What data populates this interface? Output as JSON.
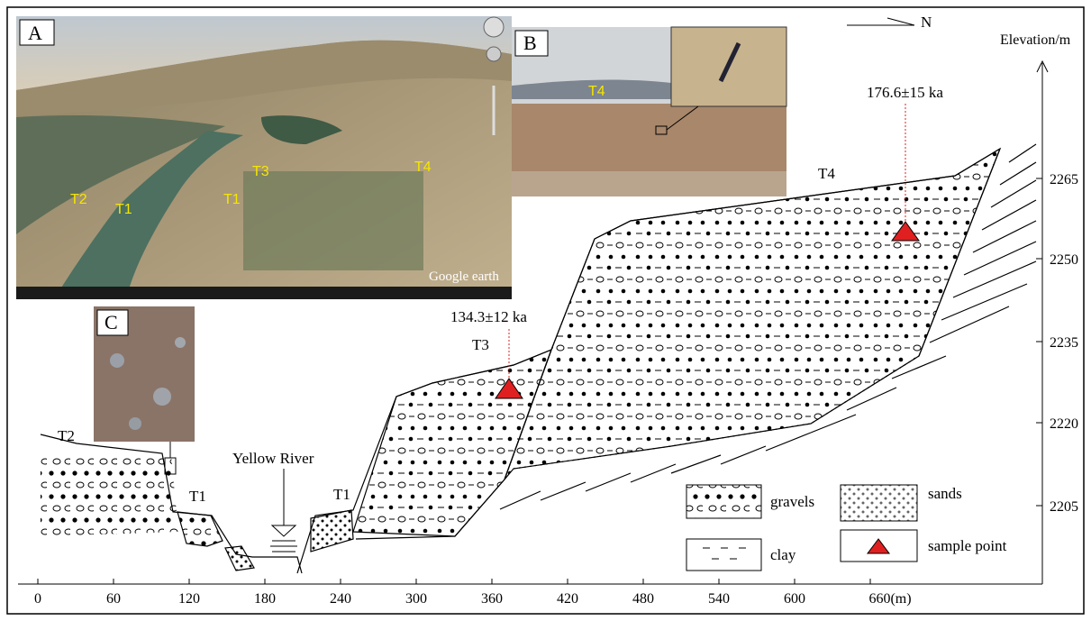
{
  "panels": {
    "A": {
      "label": "A",
      "terraces": [
        "T3",
        "T4",
        "T2",
        "T1",
        "T1"
      ],
      "watermark": "Google earth"
    },
    "B": {
      "label": "B",
      "terrace": "T4"
    },
    "C": {
      "label": "C"
    }
  },
  "north": "N",
  "y_axis": {
    "title": "Elevation/m",
    "ticks": [
      "2265",
      "2250",
      "2235",
      "2220",
      "2205"
    ]
  },
  "x_axis": {
    "ticks": [
      "0",
      "60",
      "120",
      "180",
      "240",
      "300",
      "360",
      "420",
      "480",
      "540",
      "600",
      "660(m)"
    ]
  },
  "section": {
    "terraces": [
      "T2",
      "T1",
      "T1",
      "T3",
      "T4"
    ],
    "river": "Yellow River",
    "ages": [
      "134.3±12 ka",
      "176.6±15 ka"
    ]
  },
  "legend": [
    "gravels",
    "sands",
    "clay",
    "sample point"
  ]
}
